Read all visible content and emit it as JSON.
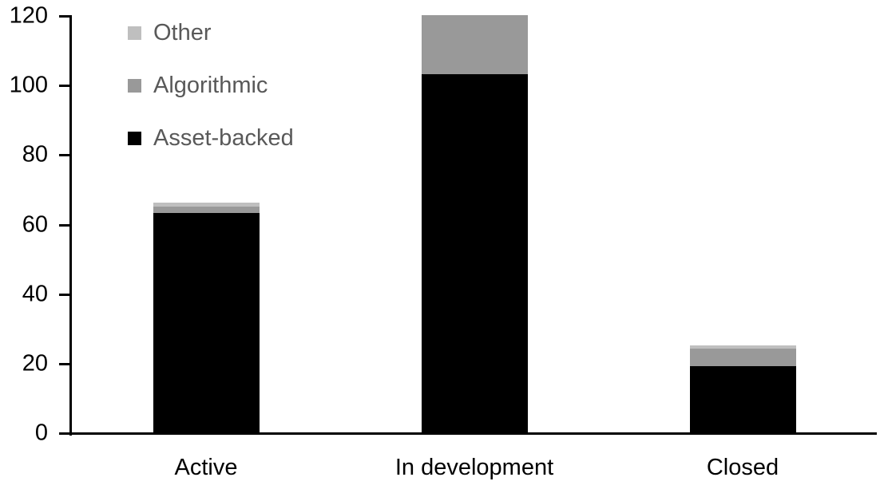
{
  "chart_data": {
    "type": "bar",
    "stacked": true,
    "title": "",
    "xlabel": "",
    "ylabel": "",
    "categories": [
      "Active",
      "In development",
      "Closed"
    ],
    "series": [
      {
        "name": "Asset-backed",
        "color": "#000000",
        "values": [
          63,
          103,
          19
        ]
      },
      {
        "name": "Algorithmic",
        "color": "#999999",
        "values": [
          2,
          17,
          5
        ]
      },
      {
        "name": "Other",
        "color": "#bfbfbf",
        "values": [
          1,
          0,
          1
        ]
      }
    ],
    "totals": [
      66,
      120,
      25
    ],
    "y_axis": {
      "min": 0,
      "max": 120,
      "tick_step": 20,
      "tick_labels": [
        "0",
        "20",
        "40",
        "60",
        "80",
        "100",
        "120"
      ]
    },
    "grid": false,
    "legend": {
      "position": "top-left",
      "order_top_to_bottom": [
        "Other",
        "Algorithmic",
        "Asset-backed"
      ],
      "text_color": "#595959"
    },
    "colors": {
      "axis": "#000000",
      "tick_label_text": "#000000",
      "category_label_text": "#000000",
      "background": "#ffffff"
    }
  }
}
